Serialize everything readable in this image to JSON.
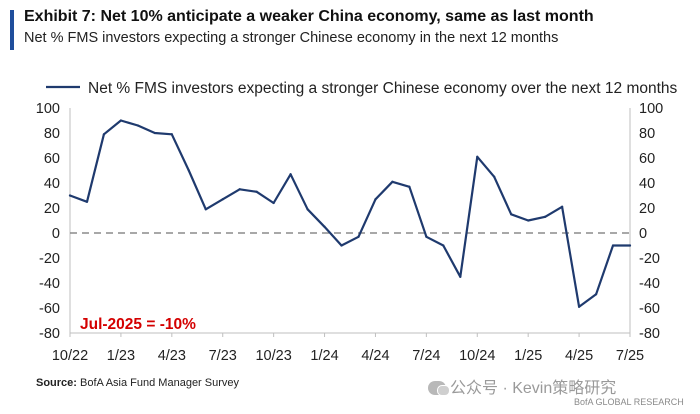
{
  "header": {
    "title": "Exhibit 7: Net 10% anticipate a weaker China economy, same as last month",
    "subtitle": "Net % FMS investors expecting a stronger Chinese economy in the next 12 months"
  },
  "footer": {
    "source_label": "Source:",
    "source_text": "BofA Asia Fund Manager Survey",
    "watermark": "公众号 · Kevin策略研究",
    "brand": "BofA GLOBAL RESEARCH"
  },
  "chart_data": {
    "type": "line",
    "title": "Exhibit 7: Net 10% anticipate a weaker China economy, same as last month",
    "subtitle": "Net % FMS investors expecting a stronger Chinese economy in the next 12 months",
    "xlabel": "",
    "ylabel": "",
    "ylim": [
      -80,
      100
    ],
    "yticks": [
      100,
      80,
      60,
      40,
      20,
      0,
      -20,
      -40,
      -60,
      -80
    ],
    "xticks": [
      "10/22",
      "1/23",
      "4/23",
      "7/23",
      "10/23",
      "1/24",
      "4/24",
      "7/24",
      "10/24",
      "1/25",
      "4/25",
      "7/25"
    ],
    "grid": false,
    "zero_line": "dashed",
    "legend_position": "top",
    "line_color": "#1f3a6e",
    "annotation": {
      "text": "Jul-2025 = -10%",
      "color": "#d40000"
    },
    "series": [
      {
        "name": "Net % FMS investors expecting a stronger Chinese economy over the next 12 months",
        "x": [
          "Oct-22",
          "Nov-22",
          "Dec-22",
          "Jan-23",
          "Feb-23",
          "Mar-23",
          "Apr-23",
          "May-23",
          "Jun-23",
          "Jul-23",
          "Aug-23",
          "Sep-23",
          "Oct-23",
          "Nov-23",
          "Dec-23",
          "Jan-24",
          "Feb-24",
          "Mar-24",
          "Apr-24",
          "May-24",
          "Jun-24",
          "Jul-24",
          "Aug-24",
          "Sep-24",
          "Oct-24",
          "Nov-24",
          "Dec-24",
          "Jan-25",
          "Feb-25",
          "Mar-25",
          "Apr-25",
          "May-25",
          "Jun-25",
          "Jul-25"
        ],
        "values": [
          30,
          25,
          79,
          90,
          86,
          80,
          79,
          50,
          19,
          27,
          35,
          33,
          24,
          47,
          19,
          5,
          -10,
          -3,
          27,
          41,
          37,
          -3,
          -10,
          -35,
          61,
          45,
          15,
          10,
          13,
          21,
          -59,
          -49,
          -10,
          -10
        ]
      }
    ]
  }
}
